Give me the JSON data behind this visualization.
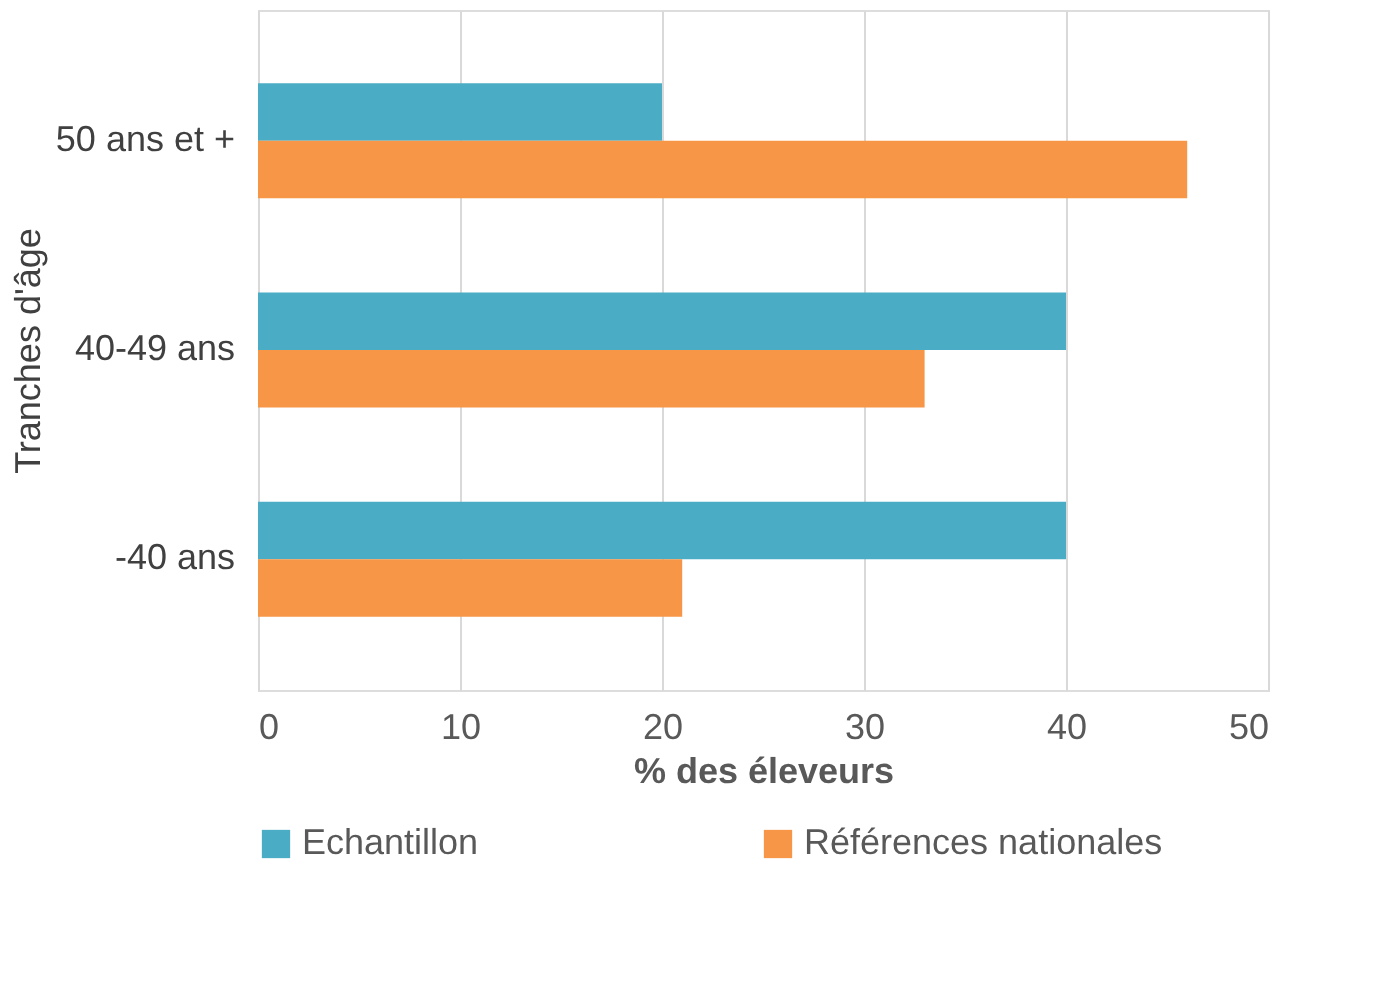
{
  "chart_data": {
    "type": "bar",
    "orientation": "horizontal",
    "xlabel": "% des éleveurs",
    "ylabel": "Tranches d'âge",
    "categories": [
      "50 ans et +",
      "40-49 ans",
      "-40 ans"
    ],
    "series": [
      {
        "name": "Echantillon",
        "color": "#4bacc6",
        "values": [
          20,
          40,
          40
        ]
      },
      {
        "name": "Références nationales",
        "color": "#f79646",
        "values": [
          46,
          33,
          21
        ]
      }
    ],
    "xlim": [
      0,
      50
    ],
    "xticks": [
      0,
      10,
      20,
      30,
      40,
      50
    ],
    "grid": "x",
    "legend": "bottom"
  }
}
